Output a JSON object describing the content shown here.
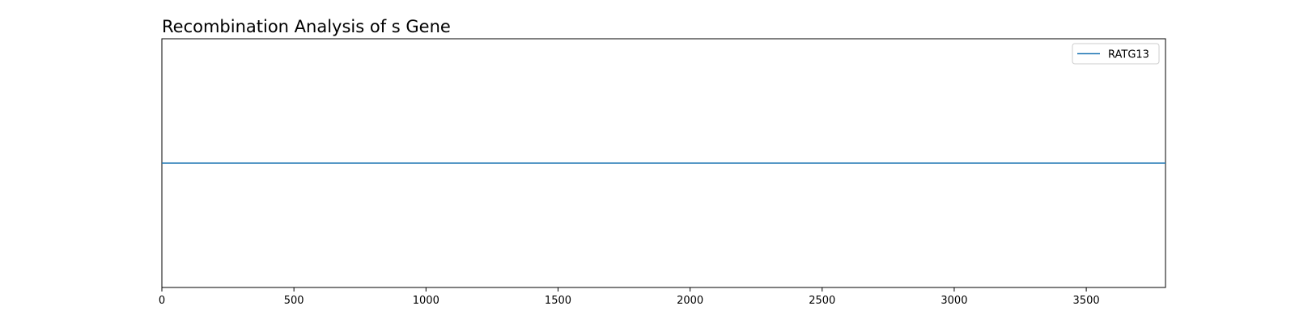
{
  "chart_data": {
    "type": "line",
    "title": "Recombination Analysis of s Gene",
    "xlabel": "",
    "ylabel": "",
    "xlim": [
      0,
      3800
    ],
    "xticks": [
      0,
      500,
      1000,
      1500,
      2000,
      2500,
      3000,
      3500
    ],
    "xtick_labels": [
      "0",
      "500",
      "1000",
      "1500",
      "2000",
      "2500",
      "3000",
      "3500"
    ],
    "ylim": [
      0,
      1
    ],
    "y_ticks_visible": false,
    "grid": false,
    "legend_position": "top-right",
    "series": [
      {
        "name": "RATG13",
        "color": "#1f77b4",
        "x": [
          0,
          3800
        ],
        "y": [
          0.5,
          0.5
        ]
      }
    ]
  }
}
